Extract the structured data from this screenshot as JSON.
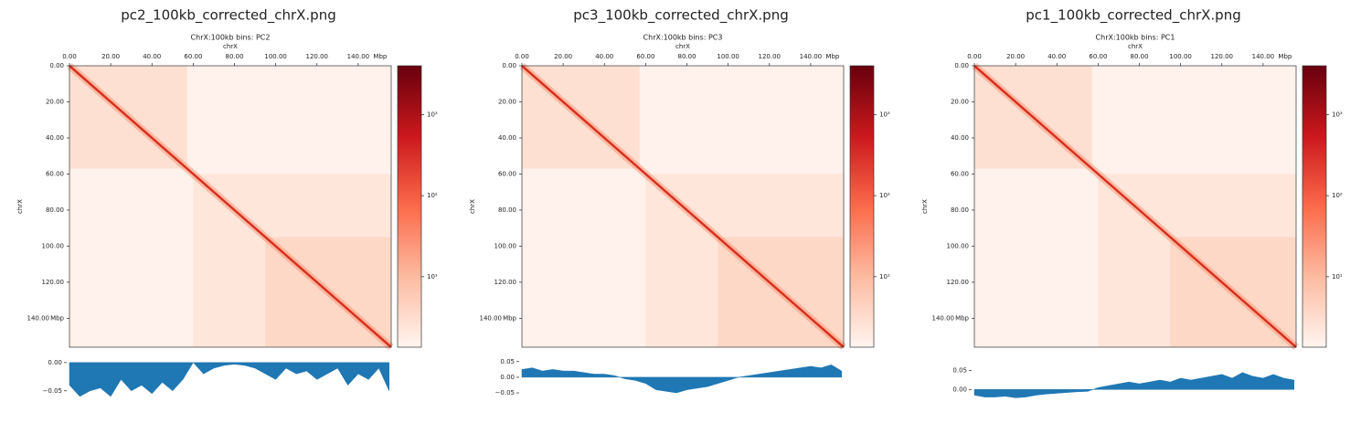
{
  "chart_data": [
    {
      "type": "heatmap",
      "title": "pc2_100kb_corrected_chrX.png",
      "subtitle": "ChrX:100kb bins: PC2",
      "xlabel": "chrX",
      "ylabel": "chrX",
      "x_unit": "Mbp",
      "y_unit": "Mbp",
      "xlim": [
        0,
        156
      ],
      "ylim": [
        0,
        156
      ],
      "xticks": [
        {
          "value": 0,
          "label": "0.00"
        },
        {
          "value": 20,
          "label": "20.00"
        },
        {
          "value": 40,
          "label": "40.00"
        },
        {
          "value": 60,
          "label": "60.00"
        },
        {
          "value": 80,
          "label": "80.00"
        },
        {
          "value": 100,
          "label": "100.00"
        },
        {
          "value": 120,
          "label": "120.00"
        },
        {
          "value": 140,
          "label": "140.00"
        }
      ],
      "yticks": [
        {
          "value": 0,
          "label": "0.00"
        },
        {
          "value": 20,
          "label": "20.00"
        },
        {
          "value": 40,
          "label": "40.00"
        },
        {
          "value": 60,
          "label": "60.00"
        },
        {
          "value": 80,
          "label": "80.00"
        },
        {
          "value": 100,
          "label": "100.00"
        },
        {
          "value": 120,
          "label": "120.00"
        },
        {
          "value": 140,
          "label": "140.00"
        }
      ],
      "colorbar": {
        "cmap": "Reds",
        "scale": "log",
        "lim": [
          1.35,
          4000
        ],
        "ticks": [
          {
            "value": 10,
            "label": "10¹"
          },
          {
            "value": 100,
            "label": "10²"
          },
          {
            "value": 1000,
            "label": "10³"
          }
        ]
      },
      "track": {
        "type": "area",
        "color": "#1f77b4",
        "xlim": [
          0,
          156
        ],
        "ylim": [
          -0.073,
          0.011
        ],
        "yticks": [
          {
            "value": 0,
            "label": "0.00"
          },
          {
            "value": -0.05,
            "label": "−0.05"
          }
        ],
        "x": [
          0,
          5,
          10,
          15,
          20,
          25,
          30,
          35,
          40,
          45,
          50,
          55,
          60,
          65,
          70,
          75,
          80,
          85,
          90,
          95,
          100,
          105,
          110,
          115,
          120,
          125,
          130,
          135,
          140,
          145,
          150,
          155
        ],
        "values": [
          -0.04,
          -0.06,
          -0.05,
          -0.045,
          -0.06,
          -0.03,
          -0.05,
          -0.04,
          -0.055,
          -0.035,
          -0.05,
          -0.03,
          0,
          -0.02,
          -0.01,
          -0.005,
          -0.003,
          -0.005,
          -0.01,
          -0.02,
          -0.03,
          -0.01,
          -0.02,
          -0.015,
          -0.03,
          -0.02,
          -0.01,
          -0.04,
          -0.02,
          -0.03,
          -0.01,
          -0.05
        ]
      }
    },
    {
      "type": "heatmap",
      "title": "pc3_100kb_corrected_chrX.png",
      "subtitle": "ChrX:100kb bins: PC3",
      "xlabel": "chrX",
      "ylabel": "chrX",
      "x_unit": "Mbp",
      "y_unit": "Mbp",
      "xlim": [
        0,
        156
      ],
      "ylim": [
        0,
        156
      ],
      "xticks": [
        {
          "value": 0,
          "label": "0.00"
        },
        {
          "value": 20,
          "label": "20.00"
        },
        {
          "value": 40,
          "label": "40.00"
        },
        {
          "value": 60,
          "label": "60.00"
        },
        {
          "value": 80,
          "label": "80.00"
        },
        {
          "value": 100,
          "label": "100.00"
        },
        {
          "value": 120,
          "label": "120.00"
        },
        {
          "value": 140,
          "label": "140.00"
        }
      ],
      "yticks": [
        {
          "value": 0,
          "label": "0.00"
        },
        {
          "value": 20,
          "label": "20.00"
        },
        {
          "value": 40,
          "label": "40.00"
        },
        {
          "value": 60,
          "label": "60.00"
        },
        {
          "value": 80,
          "label": "80.00"
        },
        {
          "value": 100,
          "label": "100.00"
        },
        {
          "value": 120,
          "label": "120.00"
        },
        {
          "value": 140,
          "label": "140.00"
        }
      ],
      "colorbar": {
        "cmap": "Reds",
        "scale": "log",
        "lim": [
          1.35,
          4000
        ],
        "ticks": [
          {
            "value": 10,
            "label": "10¹"
          },
          {
            "value": 100,
            "label": "10²"
          },
          {
            "value": 1000,
            "label": "10³"
          }
        ]
      },
      "track": {
        "type": "area",
        "color": "#1f77b4",
        "xlim": [
          0,
          156
        ],
        "ylim": [
          -0.085,
          0.067
        ],
        "yticks": [
          {
            "value": 0.05,
            "label": "0.05"
          },
          {
            "value": 0,
            "label": "0.00"
          },
          {
            "value": -0.05,
            "label": "−0.05"
          }
        ],
        "x": [
          0,
          5,
          10,
          15,
          20,
          25,
          30,
          35,
          40,
          45,
          50,
          55,
          60,
          65,
          70,
          75,
          80,
          85,
          90,
          95,
          100,
          105,
          110,
          115,
          120,
          125,
          130,
          135,
          140,
          145,
          150,
          155
        ],
        "values": [
          0.025,
          0.03,
          0.02,
          0.025,
          0.02,
          0.02,
          0.015,
          0.01,
          0.01,
          0.005,
          -0.005,
          -0.01,
          -0.02,
          -0.04,
          -0.045,
          -0.05,
          -0.04,
          -0.035,
          -0.03,
          -0.02,
          -0.01,
          0,
          0.005,
          0.01,
          0.015,
          0.02,
          0.025,
          0.03,
          0.035,
          0.03,
          0.04,
          0.02
        ]
      }
    },
    {
      "type": "heatmap",
      "title": "pc1_100kb_corrected_chrX.png",
      "subtitle": "ChrX:100kb bins: PC1",
      "xlabel": "chrX",
      "ylabel": "chrX",
      "x_unit": "Mbp",
      "y_unit": "Mbp",
      "xlim": [
        0,
        156
      ],
      "ylim": [
        0,
        156
      ],
      "xticks": [
        {
          "value": 0,
          "label": "0.00"
        },
        {
          "value": 20,
          "label": "20.00"
        },
        {
          "value": 40,
          "label": "40.00"
        },
        {
          "value": 60,
          "label": "60.00"
        },
        {
          "value": 80,
          "label": "80.00"
        },
        {
          "value": 100,
          "label": "100.00"
        },
        {
          "value": 120,
          "label": "120.00"
        },
        {
          "value": 140,
          "label": "140.00"
        }
      ],
      "yticks": [
        {
          "value": 0,
          "label": "0.00"
        },
        {
          "value": 20,
          "label": "20.00"
        },
        {
          "value": 40,
          "label": "40.00"
        },
        {
          "value": 60,
          "label": "60.00"
        },
        {
          "value": 80,
          "label": "80.00"
        },
        {
          "value": 100,
          "label": "100.00"
        },
        {
          "value": 120,
          "label": "120.00"
        },
        {
          "value": 140,
          "label": "140.00"
        }
      ],
      "colorbar": {
        "cmap": "Reds",
        "scale": "log",
        "lim": [
          1.35,
          4000
        ],
        "ticks": [
          {
            "value": 10,
            "label": "10¹"
          },
          {
            "value": 100,
            "label": "10²"
          },
          {
            "value": 1000,
            "label": "10³"
          }
        ]
      },
      "track": {
        "type": "area",
        "color": "#1f77b4",
        "xlim": [
          0,
          156
        ],
        "ylim": [
          -0.038,
          0.088
        ],
        "yticks": [
          {
            "value": 0.05,
            "label": "0.05"
          },
          {
            "value": 0,
            "label": "0.00"
          }
        ],
        "x": [
          0,
          5,
          10,
          15,
          20,
          25,
          30,
          35,
          40,
          45,
          50,
          55,
          60,
          65,
          70,
          75,
          80,
          85,
          90,
          95,
          100,
          105,
          110,
          115,
          120,
          125,
          130,
          135,
          140,
          145,
          150,
          155
        ],
        "values": [
          -0.015,
          -0.02,
          -0.02,
          -0.018,
          -0.022,
          -0.02,
          -0.015,
          -0.012,
          -0.01,
          -0.008,
          -0.006,
          -0.005,
          0.005,
          0.01,
          0.015,
          0.02,
          0.015,
          0.02,
          0.025,
          0.02,
          0.03,
          0.025,
          0.03,
          0.035,
          0.04,
          0.03,
          0.045,
          0.035,
          0.03,
          0.04,
          0.03,
          0.025
        ]
      }
    }
  ]
}
